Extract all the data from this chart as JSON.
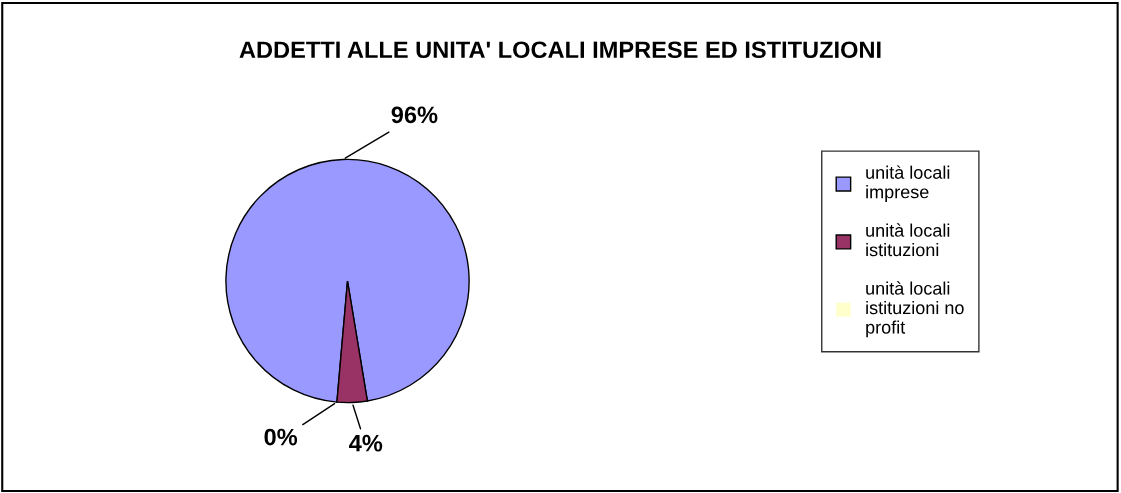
{
  "chart_data": {
    "type": "pie",
    "title": "ADDETTI ALLE UNITA' LOCALI IMPRESE ED ISTITUZIONI",
    "categories": [
      "unità locali imprese",
      "unità locali istituzioni",
      "unità locali istituzioni no profit"
    ],
    "values": [
      96,
      4,
      0
    ],
    "colors": [
      "#9999ff",
      "#993366",
      "#ffffcc"
    ],
    "value_labels": [
      "96%",
      "4%",
      "0%"
    ],
    "legend": "right"
  }
}
